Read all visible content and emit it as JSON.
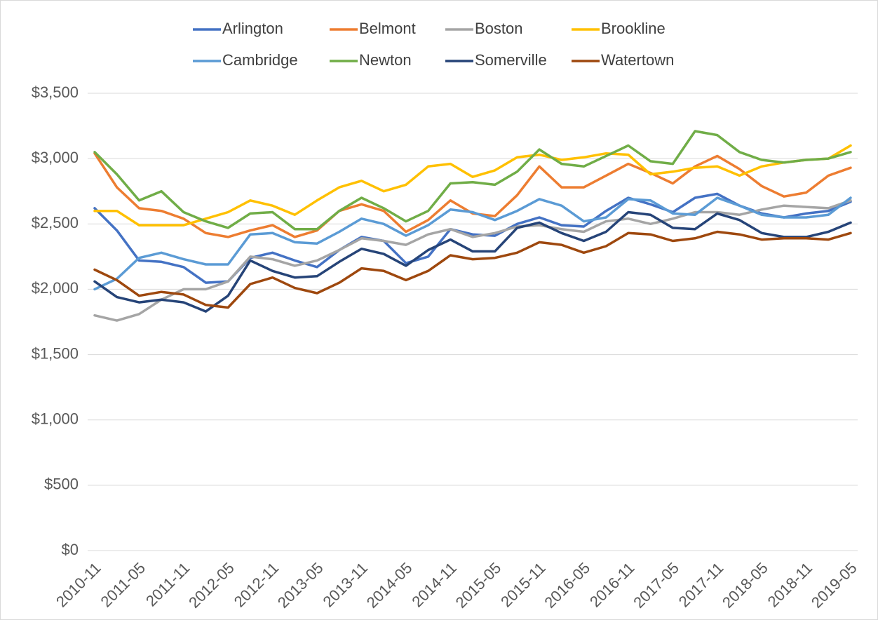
{
  "chart_data": {
    "type": "line",
    "categories": [
      "2010-11",
      null,
      "2011-05",
      null,
      "2011-11",
      null,
      "2012-05",
      null,
      "2012-11",
      null,
      "2013-05",
      null,
      "2013-11",
      null,
      "2014-05",
      null,
      "2014-11",
      null,
      "2015-05",
      null,
      "2015-11",
      null,
      "2016-05",
      null,
      "2016-11",
      null,
      "2017-05",
      null,
      "2017-11",
      null,
      "2018-05",
      null,
      "2018-11",
      null,
      "2019-05"
    ],
    "series": [
      {
        "name": "Arlington",
        "color": "#4472c4",
        "values": [
          2620,
          2450,
          2220,
          2210,
          2170,
          2050,
          2060,
          2240,
          2280,
          2220,
          2170,
          2300,
          2400,
          2370,
          2200,
          2250,
          2460,
          2420,
          2410,
          2500,
          2550,
          2490,
          2480,
          2600,
          2700,
          2650,
          2590,
          2700,
          2730,
          2640,
          2580,
          2550,
          2580,
          2600,
          2670
        ]
      },
      {
        "name": "Belmont",
        "color": "#ed7d31",
        "values": [
          3040,
          2780,
          2620,
          2600,
          2540,
          2430,
          2400,
          2450,
          2490,
          2400,
          2450,
          2600,
          2650,
          2600,
          2440,
          2530,
          2680,
          2580,
          2560,
          2720,
          2940,
          2780,
          2780,
          2870,
          2960,
          2890,
          2810,
          2940,
          3020,
          2920,
          2790,
          2710,
          2740,
          2870,
          2930
        ]
      },
      {
        "name": "Boston",
        "color": "#a5a5a5",
        "values": [
          1800,
          1760,
          1810,
          1920,
          2000,
          2000,
          2060,
          2250,
          2230,
          2180,
          2220,
          2300,
          2390,
          2370,
          2340,
          2420,
          2460,
          2400,
          2430,
          2480,
          2490,
          2460,
          2440,
          2520,
          2540,
          2500,
          2540,
          2590,
          2590,
          2570,
          2610,
          2640,
          2630,
          2620,
          2680
        ]
      },
      {
        "name": "Brookline",
        "color": "#ffc000",
        "values": [
          2600,
          2600,
          2490,
          2490,
          2490,
          2540,
          2590,
          2680,
          2640,
          2570,
          2680,
          2780,
          2830,
          2750,
          2800,
          2940,
          2960,
          2860,
          2910,
          3010,
          3030,
          2990,
          3010,
          3040,
          3030,
          2880,
          2900,
          2930,
          2940,
          2870,
          2940,
          2970,
          2990,
          3000,
          3100
        ]
      },
      {
        "name": "Cambridge",
        "color": "#5b9bd5",
        "values": [
          2000,
          2080,
          2240,
          2280,
          2230,
          2190,
          2190,
          2420,
          2430,
          2360,
          2350,
          2440,
          2540,
          2500,
          2410,
          2490,
          2610,
          2590,
          2530,
          2600,
          2690,
          2640,
          2520,
          2550,
          2690,
          2680,
          2580,
          2570,
          2700,
          2640,
          2570,
          2550,
          2550,
          2570,
          2700
        ]
      },
      {
        "name": "Newton",
        "color": "#70ad47",
        "values": [
          3050,
          2880,
          2680,
          2750,
          2590,
          2520,
          2470,
          2580,
          2590,
          2460,
          2460,
          2600,
          2700,
          2620,
          2520,
          2600,
          2810,
          2820,
          2800,
          2900,
          3070,
          2960,
          2940,
          3020,
          3100,
          2980,
          2960,
          3210,
          3180,
          3050,
          2990,
          2970,
          2990,
          3000,
          3050
        ]
      },
      {
        "name": "Somerville",
        "color": "#264478",
        "values": [
          2060,
          1940,
          1900,
          1920,
          1900,
          1830,
          1950,
          2220,
          2140,
          2090,
          2100,
          2210,
          2310,
          2270,
          2180,
          2300,
          2380,
          2290,
          2290,
          2470,
          2510,
          2430,
          2370,
          2440,
          2590,
          2570,
          2470,
          2460,
          2580,
          2530,
          2430,
          2400,
          2400,
          2440,
          2510
        ]
      },
      {
        "name": "Watertown",
        "color": "#9e480e",
        "values": [
          2150,
          2070,
          1950,
          1980,
          1960,
          1880,
          1860,
          2040,
          2090,
          2010,
          1970,
          2050,
          2160,
          2140,
          2070,
          2140,
          2260,
          2230,
          2240,
          2280,
          2360,
          2340,
          2280,
          2330,
          2430,
          2420,
          2370,
          2390,
          2440,
          2420,
          2380,
          2390,
          2390,
          2380,
          2430
        ]
      }
    ],
    "ylim": [
      0,
      3500
    ],
    "yticks": [
      {
        "value": 0,
        "label": "$0"
      },
      {
        "value": 500,
        "label": "$500"
      },
      {
        "value": 1000,
        "label": "$1,000"
      },
      {
        "value": 1500,
        "label": "$1,500"
      },
      {
        "value": 2000,
        "label": "$2,000"
      },
      {
        "value": 2500,
        "label": "$2,500"
      },
      {
        "value": 3000,
        "label": "$3,000"
      },
      {
        "value": 3500,
        "label": "$3,500"
      }
    ],
    "grid": true,
    "legend": "top"
  }
}
